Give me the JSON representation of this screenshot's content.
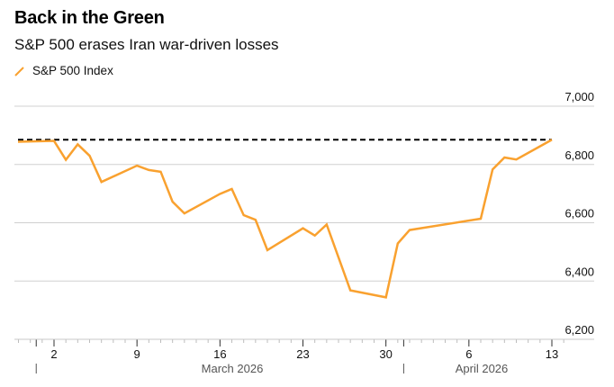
{
  "header": {
    "title": "Back in the Green",
    "subtitle": "S&P 500 erases Iran war-driven losses"
  },
  "legend": {
    "label": "S&P 500 Index",
    "color": "#f9a12f"
  },
  "colors": {
    "line": "#f9a12f",
    "reference": "#000000",
    "grid": "#d0d0d0"
  },
  "chart_data": {
    "type": "line",
    "title": "Back in the Green",
    "subtitle": "S&P 500 erases Iran war-driven losses",
    "xlabel": "",
    "ylabel": "",
    "ylim": [
      6200,
      7000
    ],
    "yticks": [
      6200,
      6400,
      6600,
      6800,
      7000
    ],
    "ytick_labels": [
      "6,200",
      "6,400",
      "6,600",
      "6,800",
      "7,000"
    ],
    "y_axis_position": "right",
    "grid": true,
    "legend_position": "top-left",
    "xticks": [
      {
        "date": "2026-03-02",
        "label": "2"
      },
      {
        "date": "2026-03-09",
        "label": "9"
      },
      {
        "date": "2026-03-16",
        "label": "16"
      },
      {
        "date": "2026-03-23",
        "label": "23"
      },
      {
        "date": "2026-03-30",
        "label": "30"
      },
      {
        "date": "2026-04-06",
        "label": "6"
      },
      {
        "date": "2026-04-13",
        "label": "13"
      }
    ],
    "months": [
      {
        "start": "2026-03-01",
        "label": "March 2026"
      },
      {
        "start": "2026-04-01",
        "label": "April 2026"
      }
    ],
    "xrange": [
      "2026-02-26",
      "2026-04-15"
    ],
    "reference_line": {
      "value": 6885,
      "style": "dashed",
      "from": "2026-02-27",
      "to": "2026-04-13"
    },
    "series": [
      {
        "name": "S&P 500 Index",
        "x": [
          "2026-02-27",
          "2026-03-02",
          "2026-03-03",
          "2026-03-04",
          "2026-03-05",
          "2026-03-06",
          "2026-03-09",
          "2026-03-10",
          "2026-03-11",
          "2026-03-12",
          "2026-03-13",
          "2026-03-16",
          "2026-03-17",
          "2026-03-18",
          "2026-03-19",
          "2026-03-20",
          "2026-03-23",
          "2026-03-24",
          "2026-03-25",
          "2026-03-27",
          "2026-03-30",
          "2026-03-31",
          "2026-04-01",
          "2026-04-07",
          "2026-04-08",
          "2026-04-09",
          "2026-04-10",
          "2026-04-13"
        ],
        "values": [
          6878,
          6881,
          6816,
          6869,
          6830,
          6740,
          6796,
          6781,
          6775,
          6672,
          6632,
          6699,
          6716,
          6626,
          6610,
          6506,
          6581,
          6556,
          6594,
          6368,
          6344,
          6529,
          6575,
          6614,
          6783,
          6824,
          6817,
          6885
        ]
      }
    ]
  }
}
